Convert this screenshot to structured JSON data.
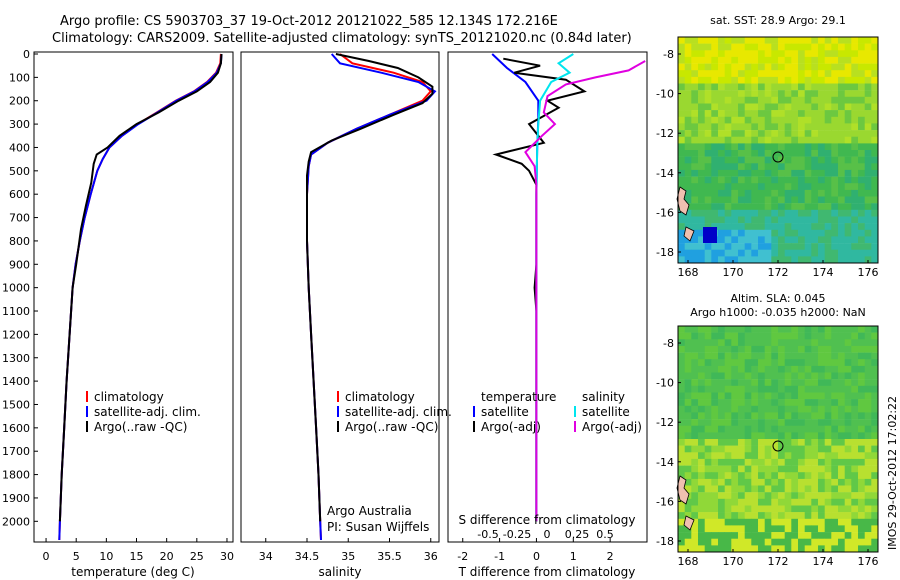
{
  "header": {
    "line1": "Argo profile: CS 5903703_37 19-Oct-2012 20121022_585 12.134S 172.216E",
    "line2": "Climatology: CARS2009. Satellite-adjusted climatology: synTS_20121020.nc (0.84d later)"
  },
  "colors": {
    "climatology": "#ff0000",
    "satellite": "#0000ff",
    "argo": "#000000",
    "sat_salinity": "#00e5ee",
    "argo_salinity": "#e000e0"
  },
  "depth_axis": {
    "ylim": [
      0,
      2080
    ],
    "ticks": [
      0,
      100,
      200,
      300,
      400,
      500,
      600,
      700,
      800,
      900,
      1000,
      1100,
      1200,
      1300,
      1400,
      1500,
      1600,
      1700,
      1800,
      1900,
      2000
    ]
  },
  "panels": {
    "temperature": {
      "xlabel": "temperature (deg C)",
      "xticks": [
        "0",
        "5",
        "10",
        "15",
        "20",
        "25",
        "30"
      ],
      "legend": [
        "climatology",
        "satellite-adj. clim.",
        "Argo(..raw -QC)"
      ]
    },
    "salinity": {
      "xlabel": "salinity",
      "xticks": [
        "34",
        "34.5",
        "35",
        "35.5",
        "36"
      ],
      "legend": [
        "climatology",
        "satellite-adj. clim.",
        "Argo(..raw -QC)"
      ],
      "credit1": "Argo Australia",
      "credit2": "PI: Susan Wijffels"
    },
    "difference": {
      "xlabel": "T difference from climatology",
      "toplabel": "S difference from climatology",
      "xticks": [
        "-2",
        "-1",
        "0",
        "1",
        "2"
      ],
      "sticks": [
        "-0.5",
        "-0.25",
        "0",
        "0.25",
        "0.5"
      ],
      "legend_t_title": "temperature",
      "legend_s_title": "salinity",
      "legend_items": [
        "satellite",
        "Argo(-adj)",
        "satellite",
        "Argo(-adj)"
      ]
    }
  },
  "maps": {
    "sst_title": "sat. SST: 28.9 Argo: 29.1",
    "sla_title1": "Altim. SLA: 0.045",
    "sla_title2": "Argo h1000: -0.035 h2000: NaN",
    "yticks": [
      "-8",
      "-10",
      "-12",
      "-14",
      "-16",
      "-18"
    ],
    "xticks": [
      "168",
      "170",
      "172",
      "174",
      "176"
    ],
    "stamp": "IMOS 29-Oct-2012 17:02:22"
  },
  "chart_data": [
    {
      "type": "line",
      "title": "temperature",
      "xlabel": "temperature (deg C)",
      "ylabel": "",
      "xlim": [
        -2,
        31
      ],
      "ylim": [
        2080,
        0
      ],
      "series": [
        {
          "name": "climatology",
          "color": "#ff0000",
          "points": [
            [
              29,
              0
            ],
            [
              28.9,
              40
            ],
            [
              28.2,
              80
            ],
            [
              26.7,
              120
            ],
            [
              24.5,
              160
            ],
            [
              21.5,
              200
            ],
            [
              18.4,
              250
            ],
            [
              15.2,
              300
            ],
            [
              12.6,
              350
            ],
            [
              10.5,
              400
            ],
            [
              9.4,
              450
            ],
            [
              8.5,
              500
            ],
            [
              7.4,
              600
            ],
            [
              6.4,
              700
            ],
            [
              5.6,
              800
            ],
            [
              4.9,
              900
            ],
            [
              4.4,
              1000
            ],
            [
              3.9,
              1200
            ],
            [
              3.4,
              1400
            ],
            [
              3,
              1600
            ],
            [
              2.6,
              1800
            ],
            [
              2.3,
              2000
            ],
            [
              2.2,
              2080
            ]
          ]
        },
        {
          "name": "satellite-adj. clim.",
          "color": "#0000ff",
          "points": [
            [
              29.1,
              0
            ],
            [
              29.0,
              40
            ],
            [
              28.3,
              80
            ],
            [
              26.8,
              120
            ],
            [
              24.6,
              160
            ],
            [
              21.6,
              200
            ],
            [
              18.5,
              250
            ],
            [
              15.3,
              300
            ],
            [
              12.6,
              350
            ],
            [
              10.5,
              400
            ],
            [
              9.4,
              450
            ],
            [
              8.5,
              500
            ],
            [
              7.4,
              600
            ],
            [
              6.4,
              700
            ],
            [
              5.6,
              800
            ],
            [
              4.9,
              900
            ],
            [
              4.4,
              1000
            ],
            [
              3.9,
              1200
            ],
            [
              3.4,
              1400
            ],
            [
              3,
              1600
            ],
            [
              2.6,
              1800
            ],
            [
              2.3,
              2000
            ],
            [
              2.2,
              2080
            ]
          ]
        },
        {
          "name": "Argo(..raw -QC)",
          "color": "#000000",
          "points": [
            [
              29.1,
              0
            ],
            [
              29.0,
              40
            ],
            [
              28.5,
              80
            ],
            [
              27.2,
              120
            ],
            [
              25.0,
              160
            ],
            [
              22.0,
              200
            ],
            [
              18.7,
              250
            ],
            [
              15.0,
              300
            ],
            [
              12.2,
              350
            ],
            [
              10.2,
              400
            ],
            [
              8.4,
              430
            ],
            [
              7.9,
              470
            ],
            [
              7.5,
              550
            ],
            [
              6.6,
              650
            ],
            [
              5.8,
              750
            ],
            [
              5.0,
              900
            ],
            [
              4.4,
              1000
            ],
            [
              3.9,
              1200
            ],
            [
              3.4,
              1400
            ],
            [
              3,
              1600
            ],
            [
              2.6,
              1800
            ],
            [
              2.3,
              2000
            ]
          ]
        }
      ]
    },
    {
      "type": "line",
      "title": "salinity",
      "xlabel": "salinity",
      "ylabel": "",
      "xlim": [
        33.7,
        36.1
      ],
      "ylim": [
        2080,
        0
      ],
      "series": [
        {
          "name": "climatology",
          "color": "#ff0000",
          "points": [
            [
              34.9,
              0
            ],
            [
              35.05,
              40
            ],
            [
              35.55,
              80
            ],
            [
              35.9,
              120
            ],
            [
              36.0,
              160
            ],
            [
              35.9,
              200
            ],
            [
              35.5,
              260
            ],
            [
              35.1,
              320
            ],
            [
              34.75,
              380
            ],
            [
              34.55,
              430
            ],
            [
              34.52,
              480
            ],
            [
              34.5,
              600
            ],
            [
              34.5,
              800
            ],
            [
              34.52,
              1000
            ],
            [
              34.55,
              1200
            ],
            [
              34.58,
              1400
            ],
            [
              34.61,
              1600
            ],
            [
              34.64,
              1800
            ],
            [
              34.66,
              2000
            ],
            [
              34.67,
              2080
            ]
          ]
        },
        {
          "name": "satellite-adj. clim.",
          "color": "#0000ff",
          "points": [
            [
              34.8,
              0
            ],
            [
              34.9,
              40
            ],
            [
              35.4,
              80
            ],
            [
              35.85,
              120
            ],
            [
              36.05,
              160
            ],
            [
              35.95,
              200
            ],
            [
              35.5,
              260
            ],
            [
              35.1,
              320
            ],
            [
              34.75,
              380
            ],
            [
              34.55,
              430
            ],
            [
              34.52,
              480
            ],
            [
              34.5,
              600
            ],
            [
              34.5,
              800
            ],
            [
              34.52,
              1000
            ],
            [
              34.55,
              1200
            ],
            [
              34.58,
              1400
            ],
            [
              34.61,
              1600
            ],
            [
              34.64,
              1800
            ],
            [
              34.66,
              2000
            ],
            [
              34.67,
              2080
            ]
          ]
        },
        {
          "name": "Argo(..raw -QC)",
          "color": "#000000",
          "points": [
            [
              34.85,
              0
            ],
            [
              35.25,
              30
            ],
            [
              35.6,
              60
            ],
            [
              35.85,
              100
            ],
            [
              36.02,
              140
            ],
            [
              36.02,
              170
            ],
            [
              35.9,
              210
            ],
            [
              35.55,
              260
            ],
            [
              35.15,
              320
            ],
            [
              34.8,
              370
            ],
            [
              34.55,
              420
            ],
            [
              34.52,
              460
            ],
            [
              34.5,
              520
            ],
            [
              34.5,
              600
            ],
            [
              34.5,
              800
            ],
            [
              34.52,
              1000
            ],
            [
              34.55,
              1200
            ],
            [
              34.58,
              1400
            ],
            [
              34.61,
              1600
            ],
            [
              34.64,
              1800
            ],
            [
              34.66,
              2000
            ]
          ]
        }
      ]
    },
    {
      "type": "line",
      "title": "difference",
      "xlabel": "T difference from climatology",
      "ylabel": "",
      "xlim": [
        -2.4,
        3.0
      ],
      "ylim": [
        2080,
        0
      ],
      "series": [
        {
          "name": "satellite",
          "color": "#0000ff",
          "points": [
            [
              -1.2,
              0
            ],
            [
              -0.8,
              60
            ],
            [
              -0.3,
              120
            ],
            [
              0.05,
              200
            ],
            [
              0.05,
              280
            ],
            [
              0.02,
              400
            ],
            [
              0,
              600
            ],
            [
              0,
              2000
            ]
          ]
        },
        {
          "name": "Argo(-adj)",
          "color": "#000000",
          "points": [
            [
              -0.9,
              20
            ],
            [
              0.1,
              50
            ],
            [
              -0.6,
              80
            ],
            [
              0.8,
              110
            ],
            [
              1.3,
              160
            ],
            [
              0.3,
              200
            ],
            [
              0.6,
              230
            ],
            [
              -0.2,
              300
            ],
            [
              0.2,
              380
            ],
            [
              -1.1,
              430
            ],
            [
              -0.4,
              470
            ],
            [
              -0.2,
              500
            ],
            [
              0,
              560
            ],
            [
              0,
              700
            ],
            [
              0,
              900
            ],
            [
              -0.05,
              1000
            ],
            [
              0,
              1100
            ],
            [
              0,
              2000
            ]
          ]
        },
        {
          "name": "satellite (salinity)",
          "color": "#00e5ee",
          "points": [
            [
              1.0,
              0
            ],
            [
              0.6,
              40
            ],
            [
              0.9,
              80
            ],
            [
              0.4,
              120
            ],
            [
              0.1,
              200
            ],
            [
              0.05,
              300
            ],
            [
              0.02,
              400
            ],
            [
              0,
              600
            ],
            [
              0,
              2000
            ]
          ]
        },
        {
          "name": "Argo(-adj) (salinity)",
          "color": "#e000e0",
          "points": [
            [
              2.95,
              30
            ],
            [
              2.5,
              70
            ],
            [
              1.6,
              100
            ],
            [
              0.8,
              130
            ],
            [
              0.3,
              180
            ],
            [
              0.2,
              250
            ],
            [
              0.5,
              300
            ],
            [
              0.15,
              350
            ],
            [
              -0.3,
              420
            ],
            [
              -0.05,
              480
            ],
            [
              0,
              560
            ],
            [
              0,
              2000
            ]
          ]
        }
      ]
    }
  ]
}
